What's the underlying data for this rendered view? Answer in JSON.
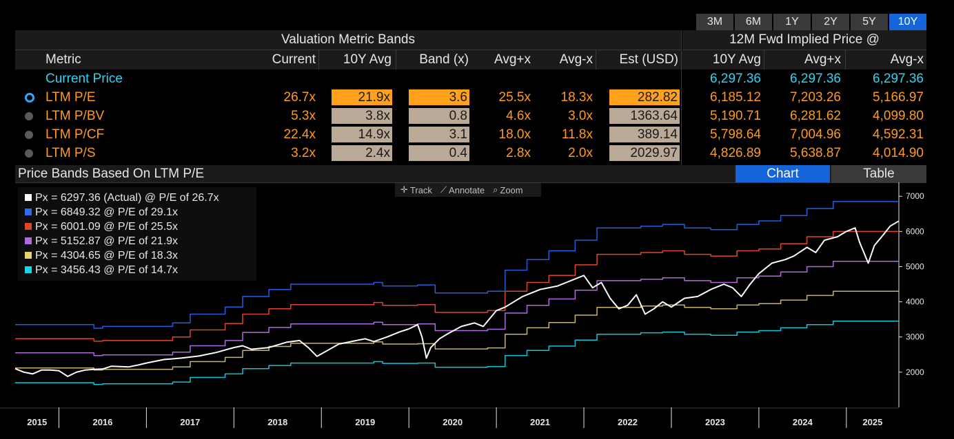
{
  "periods": [
    {
      "label": "3M",
      "active": false
    },
    {
      "label": "6M",
      "active": false
    },
    {
      "label": "1Y",
      "active": false
    },
    {
      "label": "2Y",
      "active": false
    },
    {
      "label": "5Y",
      "active": false
    },
    {
      "label": "10Y",
      "active": true
    }
  ],
  "table": {
    "left_header": "Valuation Metric Bands",
    "right_header": "12M Fwd Implied Price @",
    "columns": {
      "metric": "Metric",
      "current": "Current",
      "avg10": "10Y Avg",
      "band": "Band (x)",
      "avg_plus": "Avg+x",
      "avg_minus": "Avg-x",
      "est": "Est (USD)",
      "r_avg10": "10Y Avg",
      "r_plus": "Avg+x",
      "r_minus": "Avg-x"
    },
    "current_price": {
      "label": "Current Price",
      "r_avg10": "6,297.36",
      "r_plus": "6,297.36",
      "r_minus": "6,297.36"
    },
    "rows": [
      {
        "metric": "LTM P/E",
        "current": "26.7x",
        "avg10": "21.9x",
        "band": "3.6",
        "avg_plus": "25.5x",
        "avg_minus": "18.3x",
        "est": "282.82",
        "r_avg10": "6,185.12",
        "r_plus": "7,203.26",
        "r_minus": "5,166.97",
        "selected": true
      },
      {
        "metric": "LTM P/BV",
        "current": "5.3x",
        "avg10": "3.8x",
        "band": "0.8",
        "avg_plus": "4.6x",
        "avg_minus": "3.0x",
        "est": "1363.64",
        "r_avg10": "5,190.71",
        "r_plus": "6,281.62",
        "r_minus": "4,099.80",
        "selected": false
      },
      {
        "metric": "LTM P/CF",
        "current": "22.4x",
        "avg10": "14.9x",
        "band": "3.1",
        "avg_plus": "18.0x",
        "avg_minus": "11.8x",
        "est": "389.14",
        "r_avg10": "5,798.64",
        "r_plus": "7,004.96",
        "r_minus": "4,592.31",
        "selected": false
      },
      {
        "metric": "LTM P/S",
        "current": "3.2x",
        "avg10": "2.4x",
        "band": "0.4",
        "avg_plus": "2.8x",
        "avg_minus": "2.0x",
        "est": "2029.97",
        "r_avg10": "4,826.89",
        "r_plus": "5,638.87",
        "r_minus": "4,014.90",
        "selected": false
      }
    ]
  },
  "chart_section": {
    "title": "Price Bands Based On LTM P/E",
    "tab_chart": "Chart",
    "tab_table": "Table",
    "tools": {
      "track": "Track",
      "annotate": "Annotate",
      "zoom": "Zoom"
    }
  },
  "colors": {
    "actual": "#ffffff",
    "band_29_1": "#1f5fe0",
    "band_25_5": "#e0442a",
    "band_21_9": "#b06be0",
    "band_18_3": "#c9b46a",
    "band_14_7": "#12c4d8"
  },
  "chart_data": {
    "type": "line",
    "legend": [
      {
        "text": "Px = 6297.36 (Actual) @ P/E of 26.7x",
        "color": "#ffffff"
      },
      {
        "text": "Px = 6849.32 @ P/E of 29.1x",
        "color": "#2f6cf0"
      },
      {
        "text": "Px = 6001.09 @ P/E of 25.5x",
        "color": "#e0442a"
      },
      {
        "text": "Px = 5152.87 @ P/E of 21.9x",
        "color": "#b06be0"
      },
      {
        "text": "Px = 4304.65 @ P/E of 18.3x",
        "color": "#e8d36a"
      },
      {
        "text": "Px = 3456.43 @ P/E of 14.7x",
        "color": "#12d8e8"
      }
    ],
    "legend_position": "top-left",
    "x_ticks": [
      "2015",
      "2016",
      "2017",
      "2018",
      "2019",
      "2020",
      "2021",
      "2022",
      "2023",
      "2024",
      "2025"
    ],
    "y_ticks": [
      2000,
      3000,
      4000,
      5000,
      6000,
      7000
    ],
    "ylim": [
      1000,
      7200
    ],
    "xlim": [
      2015.5,
      2025.6
    ],
    "grid": false,
    "series": [
      {
        "key": "actual",
        "points": [
          [
            2015.5,
            2100
          ],
          [
            2015.6,
            2000
          ],
          [
            2015.7,
            1950
          ],
          [
            2015.8,
            2060
          ],
          [
            2015.9,
            2060
          ],
          [
            2016.0,
            2040
          ],
          [
            2016.1,
            1880
          ],
          [
            2016.2,
            2000
          ],
          [
            2016.3,
            2060
          ],
          [
            2016.4,
            2080
          ],
          [
            2016.5,
            2090
          ],
          [
            2016.6,
            2170
          ],
          [
            2016.7,
            2160
          ],
          [
            2016.8,
            2150
          ],
          [
            2016.9,
            2200
          ],
          [
            2017.0,
            2260
          ],
          [
            2017.2,
            2360
          ],
          [
            2017.4,
            2400
          ],
          [
            2017.6,
            2460
          ],
          [
            2017.8,
            2560
          ],
          [
            2018.0,
            2700
          ],
          [
            2018.1,
            2750
          ],
          [
            2018.2,
            2650
          ],
          [
            2018.4,
            2700
          ],
          [
            2018.6,
            2850
          ],
          [
            2018.75,
            2900
          ],
          [
            2018.85,
            2700
          ],
          [
            2018.95,
            2450
          ],
          [
            2019.0,
            2520
          ],
          [
            2019.2,
            2800
          ],
          [
            2019.4,
            2900
          ],
          [
            2019.5,
            2950
          ],
          [
            2019.6,
            2870
          ],
          [
            2019.75,
            3000
          ],
          [
            2019.9,
            3150
          ],
          [
            2020.0,
            3230
          ],
          [
            2020.1,
            3350
          ],
          [
            2020.15,
            3000
          ],
          [
            2020.2,
            2400
          ],
          [
            2020.25,
            2700
          ],
          [
            2020.35,
            2950
          ],
          [
            2020.45,
            3100
          ],
          [
            2020.6,
            3300
          ],
          [
            2020.75,
            3400
          ],
          [
            2020.85,
            3300
          ],
          [
            2021.0,
            3750
          ],
          [
            2021.1,
            3850
          ],
          [
            2021.3,
            4150
          ],
          [
            2021.5,
            4350
          ],
          [
            2021.7,
            4450
          ],
          [
            2021.85,
            4600
          ],
          [
            2022.0,
            4750
          ],
          [
            2022.1,
            4400
          ],
          [
            2022.2,
            4550
          ],
          [
            2022.3,
            4100
          ],
          [
            2022.4,
            3800
          ],
          [
            2022.5,
            3900
          ],
          [
            2022.6,
            4200
          ],
          [
            2022.7,
            3650
          ],
          [
            2022.8,
            3800
          ],
          [
            2022.9,
            4000
          ],
          [
            2023.0,
            3850
          ],
          [
            2023.15,
            4100
          ],
          [
            2023.3,
            4150
          ],
          [
            2023.45,
            4350
          ],
          [
            2023.6,
            4500
          ],
          [
            2023.7,
            4400
          ],
          [
            2023.8,
            4150
          ],
          [
            2023.9,
            4500
          ],
          [
            2024.0,
            4800
          ],
          [
            2024.15,
            5100
          ],
          [
            2024.3,
            5200
          ],
          [
            2024.4,
            5300
          ],
          [
            2024.55,
            5550
          ],
          [
            2024.65,
            5400
          ],
          [
            2024.75,
            5750
          ],
          [
            2024.9,
            5850
          ],
          [
            2025.0,
            6000
          ],
          [
            2025.1,
            6100
          ],
          [
            2025.15,
            5700
          ],
          [
            2025.25,
            5100
          ],
          [
            2025.32,
            5600
          ],
          [
            2025.42,
            5900
          ],
          [
            2025.5,
            6150
          ],
          [
            2025.6,
            6297
          ]
        ]
      },
      {
        "key": "band_29_1",
        "points": [
          [
            2015.5,
            3350
          ],
          [
            2016.4,
            3250
          ],
          [
            2016.5,
            3300
          ],
          [
            2017.3,
            3400
          ],
          [
            2017.5,
            3650
          ],
          [
            2017.9,
            3850
          ],
          [
            2018.1,
            4150
          ],
          [
            2018.4,
            4350
          ],
          [
            2018.65,
            4500
          ],
          [
            2019.6,
            4550
          ],
          [
            2019.7,
            4450
          ],
          [
            2020.1,
            4480
          ],
          [
            2020.3,
            4250
          ],
          [
            2020.9,
            4300
          ],
          [
            2021.1,
            4900
          ],
          [
            2021.35,
            5200
          ],
          [
            2021.6,
            5450
          ],
          [
            2021.9,
            5750
          ],
          [
            2022.15,
            6100
          ],
          [
            2022.65,
            6150
          ],
          [
            2022.9,
            6200
          ],
          [
            2023.15,
            6100
          ],
          [
            2023.45,
            6050
          ],
          [
            2023.75,
            6200
          ],
          [
            2024.0,
            6300
          ],
          [
            2024.25,
            6450
          ],
          [
            2024.55,
            6650
          ],
          [
            2024.85,
            6850
          ],
          [
            2025.3,
            6850
          ],
          [
            2025.6,
            6849
          ]
        ]
      },
      {
        "key": "band_25_5",
        "points": [
          [
            2015.5,
            2950
          ],
          [
            2016.4,
            2880
          ],
          [
            2016.5,
            2900
          ],
          [
            2017.3,
            3000
          ],
          [
            2017.5,
            3200
          ],
          [
            2017.9,
            3380
          ],
          [
            2018.1,
            3650
          ],
          [
            2018.4,
            3800
          ],
          [
            2018.65,
            3920
          ],
          [
            2019.6,
            3980
          ],
          [
            2019.7,
            3900
          ],
          [
            2020.1,
            3920
          ],
          [
            2020.3,
            3700
          ],
          [
            2020.9,
            3750
          ],
          [
            2021.1,
            4300
          ],
          [
            2021.35,
            4550
          ],
          [
            2021.6,
            4750
          ],
          [
            2021.9,
            5050
          ],
          [
            2022.15,
            5350
          ],
          [
            2022.65,
            5400
          ],
          [
            2022.9,
            5450
          ],
          [
            2023.15,
            5350
          ],
          [
            2023.45,
            5300
          ],
          [
            2023.75,
            5450
          ],
          [
            2024.0,
            5500
          ],
          [
            2024.25,
            5650
          ],
          [
            2024.55,
            5850
          ],
          [
            2024.85,
            6000
          ],
          [
            2025.3,
            6000
          ],
          [
            2025.6,
            6001
          ]
        ]
      },
      {
        "key": "band_21_9",
        "points": [
          [
            2015.5,
            2550
          ],
          [
            2016.4,
            2470
          ],
          [
            2016.5,
            2490
          ],
          [
            2017.3,
            2570
          ],
          [
            2017.5,
            2750
          ],
          [
            2017.9,
            2900
          ],
          [
            2018.1,
            3130
          ],
          [
            2018.4,
            3270
          ],
          [
            2018.65,
            3370
          ],
          [
            2019.6,
            3420
          ],
          [
            2019.7,
            3350
          ],
          [
            2020.1,
            3370
          ],
          [
            2020.3,
            3180
          ],
          [
            2020.9,
            3220
          ],
          [
            2021.1,
            3680
          ],
          [
            2021.35,
            3900
          ],
          [
            2021.6,
            4080
          ],
          [
            2021.9,
            4330
          ],
          [
            2022.15,
            4600
          ],
          [
            2022.65,
            4640
          ],
          [
            2022.9,
            4680
          ],
          [
            2023.15,
            4600
          ],
          [
            2023.45,
            4550
          ],
          [
            2023.75,
            4680
          ],
          [
            2024.0,
            4730
          ],
          [
            2024.25,
            4850
          ],
          [
            2024.55,
            5000
          ],
          [
            2024.85,
            5150
          ],
          [
            2025.3,
            5150
          ],
          [
            2025.6,
            5152
          ]
        ]
      },
      {
        "key": "band_18_3",
        "points": [
          [
            2015.5,
            2120
          ],
          [
            2016.4,
            2060
          ],
          [
            2016.5,
            2080
          ],
          [
            2017.3,
            2150
          ],
          [
            2017.5,
            2300
          ],
          [
            2017.9,
            2420
          ],
          [
            2018.1,
            2620
          ],
          [
            2018.4,
            2730
          ],
          [
            2018.65,
            2820
          ],
          [
            2019.6,
            2860
          ],
          [
            2019.7,
            2800
          ],
          [
            2020.1,
            2810
          ],
          [
            2020.3,
            2660
          ],
          [
            2020.9,
            2690
          ],
          [
            2021.1,
            3080
          ],
          [
            2021.35,
            3260
          ],
          [
            2021.6,
            3410
          ],
          [
            2021.9,
            3620
          ],
          [
            2022.15,
            3840
          ],
          [
            2022.65,
            3880
          ],
          [
            2022.9,
            3910
          ],
          [
            2023.15,
            3840
          ],
          [
            2023.45,
            3800
          ],
          [
            2023.75,
            3910
          ],
          [
            2024.0,
            3950
          ],
          [
            2024.25,
            4050
          ],
          [
            2024.55,
            4180
          ],
          [
            2024.85,
            4300
          ],
          [
            2025.3,
            4300
          ],
          [
            2025.6,
            4304
          ]
        ]
      },
      {
        "key": "band_14_7",
        "points": [
          [
            2015.5,
            1700
          ],
          [
            2016.4,
            1650
          ],
          [
            2016.5,
            1670
          ],
          [
            2017.3,
            1720
          ],
          [
            2017.5,
            1850
          ],
          [
            2017.9,
            1950
          ],
          [
            2018.1,
            2100
          ],
          [
            2018.4,
            2190
          ],
          [
            2018.65,
            2260
          ],
          [
            2019.6,
            2300
          ],
          [
            2019.7,
            2250
          ],
          [
            2020.1,
            2260
          ],
          [
            2020.3,
            2140
          ],
          [
            2020.9,
            2160
          ],
          [
            2021.1,
            2470
          ],
          [
            2021.35,
            2620
          ],
          [
            2021.6,
            2740
          ],
          [
            2021.9,
            2910
          ],
          [
            2022.15,
            3080
          ],
          [
            2022.65,
            3120
          ],
          [
            2022.9,
            3140
          ],
          [
            2023.15,
            3080
          ],
          [
            2023.45,
            3050
          ],
          [
            2023.75,
            3140
          ],
          [
            2024.0,
            3180
          ],
          [
            2024.25,
            3260
          ],
          [
            2024.55,
            3350
          ],
          [
            2024.85,
            3450
          ],
          [
            2025.3,
            3450
          ],
          [
            2025.6,
            3456
          ]
        ]
      }
    ]
  }
}
